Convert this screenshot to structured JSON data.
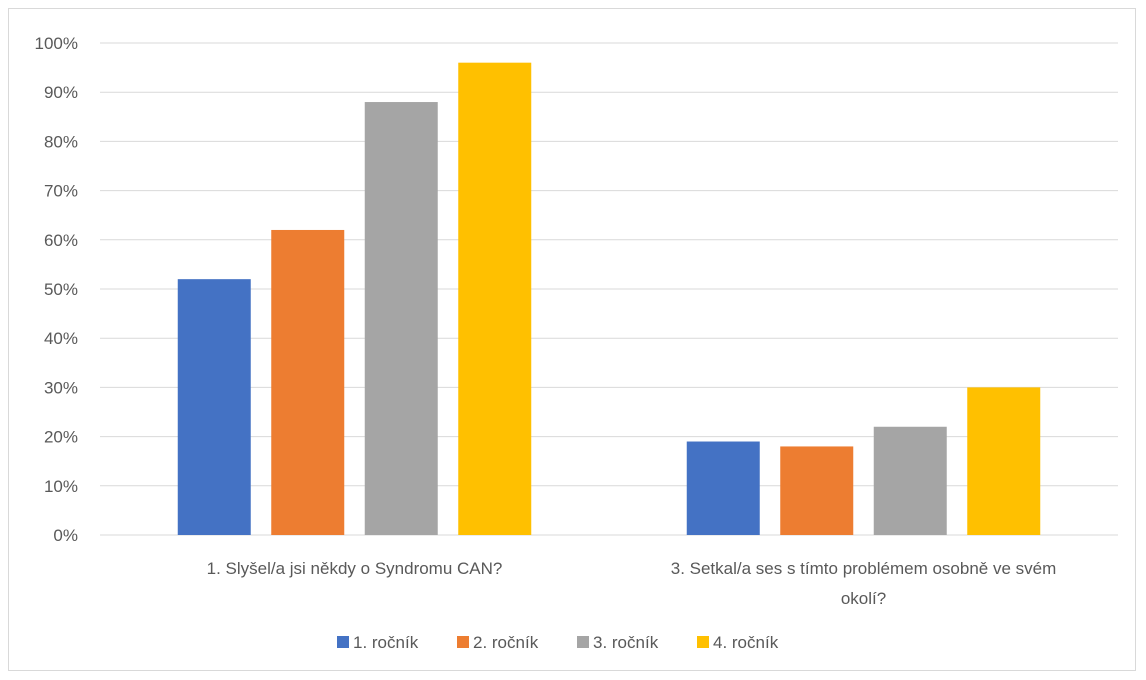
{
  "chart_data": {
    "type": "bar",
    "title": "",
    "xlabel": "",
    "ylabel": "",
    "ylim": [
      0,
      1
    ],
    "yticks": [
      "0%",
      "10%",
      "20%",
      "30%",
      "40%",
      "50%",
      "60%",
      "70%",
      "80%",
      "90%",
      "100%"
    ],
    "grid": true,
    "legend_position": "bottom",
    "categories": [
      [
        "1. Slyšel/a jsi někdy o Syndromu CAN?"
      ],
      [
        "3. Setkal/a ses s tímto problémem osobně ve svém",
        "okolí?"
      ]
    ],
    "series": [
      {
        "name": "1. ročník",
        "color": "#4472C4",
        "values": [
          0.52,
          0.19
        ]
      },
      {
        "name": "2. ročník",
        "color": "#ED7D31",
        "values": [
          0.62,
          0.18
        ]
      },
      {
        "name": "3. ročník",
        "color": "#A5A5A5",
        "values": [
          0.88,
          0.22
        ]
      },
      {
        "name": "4. ročník",
        "color": "#FFC000",
        "values": [
          0.96,
          0.3
        ]
      }
    ]
  }
}
